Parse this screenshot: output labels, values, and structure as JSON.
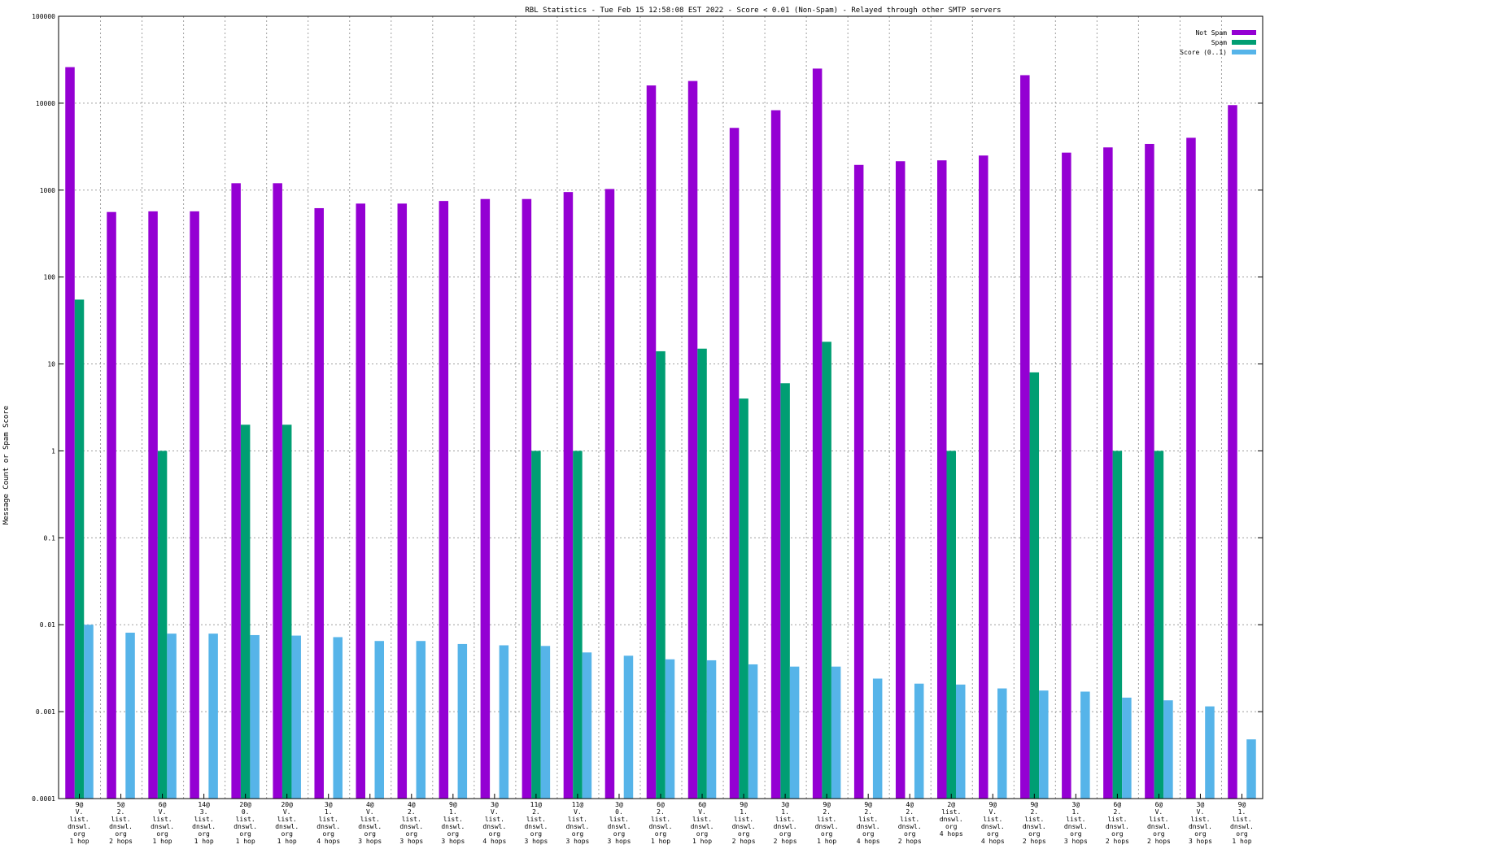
{
  "chart_data": {
    "type": "bar",
    "title": "RBL Statistics - Tue Feb 15 12:58:08 EST 2022 - Score < 0.01 (Non-Spam) - Relayed through other SMTP servers",
    "ylabel": "Message Count or Spam Score",
    "xlabel": "",
    "yscale": "log",
    "ylim": [
      0.0001,
      100000
    ],
    "yticks": [
      "100000",
      "10000",
      "1000",
      "100",
      "10",
      "1",
      "0.1",
      "0.01",
      "0.001",
      "0.0001"
    ],
    "grid": true,
    "legend_position": "top-right",
    "categories": [
      [
        "9@",
        "V.",
        "list.",
        "dnswl.",
        "org",
        "1 hop"
      ],
      [
        "5@",
        "2.",
        "list.",
        "dnswl.",
        "org",
        "2 hops"
      ],
      [
        "6@",
        "V.",
        "list.",
        "dnswl.",
        "org",
        "1 hop"
      ],
      [
        "14@",
        "3.",
        "list.",
        "dnswl.",
        "org",
        "1 hop"
      ],
      [
        "20@",
        "0.",
        "list.",
        "dnswl.",
        "org",
        "1 hop"
      ],
      [
        "20@",
        "V.",
        "list.",
        "dnswl.",
        "org",
        "1 hop"
      ],
      [
        "3@",
        "1.",
        "list.",
        "dnswl.",
        "org",
        "4 hops"
      ],
      [
        "4@",
        "V.",
        "list.",
        "dnswl.",
        "org",
        "3 hops"
      ],
      [
        "4@",
        "2.",
        "list.",
        "dnswl.",
        "org",
        "3 hops"
      ],
      [
        "9@",
        "1.",
        "list.",
        "dnswl.",
        "org",
        "3 hops"
      ],
      [
        "3@",
        "V.",
        "list.",
        "dnswl.",
        "org",
        "4 hops"
      ],
      [
        "11@",
        "2.",
        "list.",
        "dnswl.",
        "org",
        "3 hops"
      ],
      [
        "11@",
        "V.",
        "list.",
        "dnswl.",
        "org",
        "3 hops"
      ],
      [
        "3@",
        "0.",
        "list.",
        "dnswl.",
        "org",
        "3 hops"
      ],
      [
        "6@",
        "2.",
        "list.",
        "dnswl.",
        "org",
        "1 hop"
      ],
      [
        "6@",
        "V.",
        "list.",
        "dnswl.",
        "org",
        "1 hop"
      ],
      [
        "9@",
        "1.",
        "list.",
        "dnswl.",
        "org",
        "2 hops"
      ],
      [
        "3@",
        "1.",
        "list.",
        "dnswl.",
        "org",
        "2 hops"
      ],
      [
        "9@",
        "2.",
        "list.",
        "dnswl.",
        "org",
        "1 hop"
      ],
      [
        "9@",
        "2.",
        "list.",
        "dnswl.",
        "org",
        "4 hops"
      ],
      [
        "4@",
        "2.",
        "list.",
        "dnswl.",
        "org",
        "2 hops"
      ],
      [
        "2@",
        "list.",
        "dnswl.",
        "org",
        "4 hops"
      ],
      [
        "9@",
        "V.",
        "list.",
        "dnswl.",
        "org",
        "4 hops"
      ],
      [
        "9@",
        "2.",
        "list.",
        "dnswl.",
        "org",
        "2 hops"
      ],
      [
        "3@",
        "1.",
        "list.",
        "dnswl.",
        "org",
        "3 hops"
      ],
      [
        "6@",
        "2.",
        "list.",
        "dnswl.",
        "org",
        "2 hops"
      ],
      [
        "6@",
        "V.",
        "list.",
        "dnswl.",
        "org",
        "2 hops"
      ],
      [
        "3@",
        "V.",
        "list.",
        "dnswl.",
        "org",
        "3 hops"
      ],
      [
        "9@",
        "1.",
        "list.",
        "dnswl.",
        "org",
        "1 hop"
      ]
    ],
    "series": [
      {
        "name": "Not Spam",
        "color": "#9400d3",
        "values": [
          26000,
          560,
          570,
          570,
          1200,
          1200,
          620,
          700,
          700,
          750,
          790,
          790,
          950,
          1030,
          16000,
          18000,
          5200,
          8300,
          25000,
          1950,
          2150,
          2200,
          2500,
          21000,
          2700,
          3100,
          3400,
          4000,
          9500
        ]
      },
      {
        "name": "Spam",
        "color": "#009e73",
        "values": [
          55,
          null,
          1,
          null,
          2,
          2,
          null,
          null,
          null,
          null,
          null,
          1,
          1,
          null,
          14,
          15,
          4,
          6,
          18,
          null,
          null,
          1,
          null,
          8,
          null,
          1,
          1,
          null,
          null
        ]
      },
      {
        "name": "Score (0..1)",
        "color": "#56b4e9",
        "values": [
          0.01,
          0.0081,
          0.0079,
          0.0079,
          0.0076,
          0.0075,
          0.0072,
          0.0065,
          0.0065,
          0.006,
          0.0058,
          0.0057,
          0.0048,
          0.0044,
          0.004,
          0.0039,
          0.0035,
          0.0033,
          0.0033,
          0.0024,
          0.0021,
          0.00205,
          0.00185,
          0.00175,
          0.0017,
          0.00145,
          0.00135,
          0.00115,
          0.00048
        ]
      }
    ]
  }
}
